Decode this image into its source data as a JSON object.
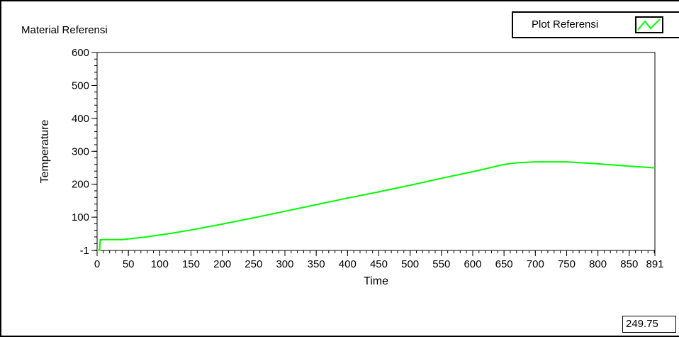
{
  "graph": {
    "title": "Material Referensi",
    "legend_label": "Plot Referensi",
    "value_readout": "249.75"
  },
  "colors": {
    "plot": "#00ff00",
    "axis": "#000000",
    "background": "#ffffff"
  },
  "chart_data": {
    "type": "line",
    "title": "Material Referensi",
    "xlabel": "Time",
    "ylabel": "Temperature",
    "xlim": [
      0,
      891
    ],
    "ylim": [
      -1,
      600
    ],
    "x_ticks": [
      0,
      50,
      100,
      150,
      200,
      250,
      300,
      350,
      400,
      450,
      500,
      550,
      600,
      650,
      700,
      750,
      800,
      850,
      891
    ],
    "x_tick_labels": [
      "0",
      "50",
      "100",
      "150",
      "200",
      "250",
      "300",
      "350",
      "400",
      "450",
      "500",
      "550",
      "600",
      "650",
      "700",
      "750",
      "800",
      "850",
      "891"
    ],
    "y_ticks": [
      -1,
      100,
      200,
      300,
      400,
      500,
      600
    ],
    "y_tick_labels": [
      "-1",
      "100",
      "200",
      "300",
      "400",
      "500",
      "600"
    ],
    "grid": false,
    "legend": "top-right",
    "series": [
      {
        "name": "Plot Referensi",
        "x": [
          0,
          4,
          5,
          10,
          20,
          30,
          40,
          50,
          75,
          100,
          125,
          150,
          200,
          250,
          300,
          350,
          400,
          450,
          500,
          550,
          600,
          650,
          670,
          700,
          750,
          800,
          850,
          891
        ],
        "y": [
          0,
          0,
          31,
          32,
          32,
          32,
          32,
          34,
          39,
          46,
          53,
          61,
          79,
          98,
          118,
          138,
          158,
          177,
          197,
          218,
          238,
          260,
          265,
          268,
          268,
          262,
          255,
          249.75
        ]
      }
    ]
  }
}
